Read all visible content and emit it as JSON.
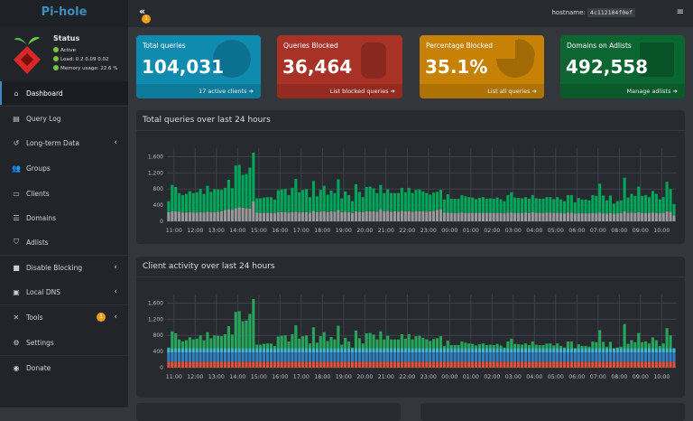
{
  "app": {
    "title": "Pi-hole",
    "hostname_label": "hostname:",
    "hostname": "4c112104f0ef",
    "notification_count": "1"
  },
  "status": {
    "title": "Status",
    "active": "Active",
    "load": "Load:  0.2  0.09  0.02",
    "memory": "Memory usage:  22.6 %",
    "indicator_color": "#7cc242"
  },
  "sidebar": {
    "items": [
      {
        "label": "Dashboard",
        "icon": "home-icon"
      },
      {
        "label": "Query Log",
        "icon": "file-icon"
      },
      {
        "label": "Long-term Data",
        "icon": "history-icon",
        "chevron": true
      },
      {
        "label": "Groups",
        "icon": "users-icon"
      },
      {
        "label": "Clients",
        "icon": "laptop-icon"
      },
      {
        "label": "Domains",
        "icon": "list-icon"
      },
      {
        "label": "Adlists",
        "icon": "shield-icon"
      },
      {
        "label": "Disable Blocking",
        "icon": "stop-icon",
        "chevron": true
      },
      {
        "label": "Local DNS",
        "icon": "address-book-icon",
        "chevron": true
      },
      {
        "label": "Tools",
        "icon": "tools-icon",
        "chevron": true,
        "badge": "1"
      },
      {
        "label": "Settings",
        "icon": "gear-icon"
      },
      {
        "label": "Donate",
        "icon": "donate-icon"
      }
    ]
  },
  "cards": [
    {
      "title": "Total queries",
      "value": "104,031",
      "footer": "17 active clients",
      "color": "#0f8bb0",
      "icon": "globe-icon"
    },
    {
      "title": "Queries Blocked",
      "value": "36,464",
      "footer": "List blocked queries",
      "color": "#a93226",
      "icon": "hand-icon"
    },
    {
      "title": "Percentage Blocked",
      "value": "35.1%",
      "footer": "List all queries",
      "color": "#c78205",
      "icon": "pie-chart-icon"
    },
    {
      "title": "Domains on Adlists",
      "value": "492,558",
      "footer": "Manage adlists",
      "color": "#0b6631",
      "icon": "list-icon"
    }
  ],
  "chart_data": [
    {
      "type": "bar",
      "stacked": true,
      "title": "Total queries over last 24 hours",
      "ylim": [
        0,
        1700
      ],
      "yticks": [
        "0",
        "400",
        "800",
        "1,200",
        "1,600"
      ],
      "ytick_values": [
        0,
        400,
        800,
        1200,
        1600
      ],
      "xticks": [
        "11:00",
        "12:00",
        "13:00",
        "14:00",
        "15:00",
        "16:00",
        "17:00",
        "18:00",
        "19:00",
        "20:00",
        "21:00",
        "22:00",
        "23:00",
        "00:00",
        "01:00",
        "02:00",
        "03:00",
        "04:00",
        "05:00",
        "06:00",
        "07:00",
        "08:00",
        "09:00",
        "10:00"
      ],
      "grid": true,
      "series": [
        {
          "color": "#999999",
          "values": [
            230,
            250,
            250,
            240,
            220,
            220,
            230,
            220,
            220,
            230,
            220,
            240,
            230,
            230,
            240,
            250,
            280,
            300,
            290,
            330,
            350,
            340,
            330,
            320,
            500,
            220,
            210,
            210,
            210,
            210,
            200,
            230,
            230,
            230,
            220,
            230,
            240,
            220,
            230,
            230,
            220,
            260,
            230,
            240,
            250,
            230,
            250,
            240,
            280,
            230,
            240,
            230,
            210,
            250,
            240,
            230,
            250,
            250,
            250,
            240,
            300,
            250,
            260,
            240,
            250,
            240,
            260,
            250,
            250,
            240,
            260,
            250,
            250,
            240,
            250,
            260,
            280,
            300,
            220,
            220,
            210,
            210,
            210,
            220,
            210,
            210,
            210,
            210,
            210,
            210,
            210,
            210,
            210,
            210,
            210,
            200,
            220,
            220,
            210,
            210,
            210,
            220,
            210,
            230,
            210,
            210,
            210,
            220,
            220,
            210,
            210,
            210,
            200,
            220,
            220,
            190,
            200,
            200,
            200,
            200,
            210,
            200,
            220,
            200,
            190,
            210,
            190,
            200,
            200,
            250,
            210,
            220,
            210,
            230,
            210,
            210,
            210,
            220,
            210,
            200,
            210,
            250,
            240,
            150
          ]
        },
        {
          "color": "#00a65a",
          "total_values": [
            500,
            900,
            850,
            700,
            650,
            680,
            750,
            700,
            720,
            800,
            680,
            880,
            730,
            800,
            790,
            780,
            830,
            1030,
            820,
            1380,
            1400,
            1150,
            1170,
            1330,
            1700,
            570,
            570,
            590,
            600,
            600,
            540,
            770,
            790,
            800,
            650,
            830,
            1050,
            720,
            780,
            800,
            600,
            1000,
            620,
            780,
            880,
            660,
            760,
            700,
            1040,
            570,
            740,
            650,
            500,
            920,
            730,
            600,
            850,
            860,
            820,
            700,
            900,
            700,
            790,
            700,
            700,
            700,
            830,
            720,
            830,
            700,
            780,
            790,
            740,
            700,
            660,
            710,
            730,
            780,
            540,
            670,
            560,
            560,
            560,
            650,
            620,
            600,
            590,
            550,
            580,
            600,
            560,
            570,
            560,
            590,
            550,
            500,
            650,
            720,
            590,
            580,
            570,
            600,
            560,
            650,
            570,
            560,
            560,
            600,
            600,
            550,
            600,
            540,
            500,
            650,
            650,
            470,
            580,
            540,
            540,
            520,
            650,
            630,
            930,
            640,
            520,
            640,
            440,
            500,
            520,
            1080,
            590,
            680,
            630,
            860,
            630,
            650,
            600,
            750,
            680,
            540,
            600,
            980,
            800,
            430
          ]
        }
      ]
    },
    {
      "type": "bar",
      "stacked": true,
      "title": "Client activity over last 24 hours",
      "ylim": [
        0,
        1700
      ],
      "yticks": [
        "0",
        "400",
        "800",
        "1,200",
        "1,600"
      ],
      "ytick_values": [
        0,
        400,
        800,
        1200,
        1600
      ],
      "xticks": [
        "11:00",
        "12:00",
        "13:00",
        "14:00",
        "15:00",
        "16:00",
        "17:00",
        "18:00",
        "19:00",
        "20:00",
        "21:00",
        "22:00",
        "23:00",
        "00:00",
        "01:00",
        "02:00",
        "03:00",
        "04:00",
        "05:00",
        "06:00",
        "07:00",
        "08:00",
        "09:00",
        "10:00"
      ],
      "grid": true,
      "series": [
        {
          "color": "#e0533a",
          "constant": 150
        },
        {
          "color": "#2f7fc1",
          "constant": 230
        },
        {
          "color": "#3fb8c8",
          "constant": 100
        },
        {
          "color": "#27a55a",
          "values": [
            20,
            420,
            370,
            220,
            170,
            200,
            270,
            220,
            240,
            320,
            200,
            400,
            250,
            320,
            310,
            300,
            350,
            550,
            340,
            900,
            920,
            670,
            690,
            850,
            1220,
            90,
            90,
            110,
            120,
            120,
            60,
            290,
            310,
            320,
            170,
            350,
            570,
            240,
            300,
            320,
            120,
            520,
            140,
            300,
            400,
            180,
            280,
            220,
            560,
            90,
            260,
            170,
            20,
            440,
            250,
            120,
            370,
            380,
            340,
            220,
            420,
            220,
            310,
            220,
            220,
            220,
            350,
            240,
            350,
            220,
            300,
            310,
            260,
            220,
            180,
            230,
            250,
            300,
            60,
            190,
            80,
            80,
            80,
            170,
            140,
            120,
            110,
            70,
            100,
            120,
            80,
            90,
            80,
            110,
            70,
            20,
            170,
            240,
            110,
            100,
            90,
            120,
            80,
            170,
            90,
            80,
            80,
            120,
            120,
            70,
            120,
            60,
            20,
            170,
            170,
            0,
            100,
            60,
            60,
            40,
            170,
            150,
            450,
            160,
            40,
            160,
            0,
            20,
            40,
            600,
            110,
            200,
            150,
            380,
            150,
            170,
            120,
            270,
            200,
            60,
            120,
            500,
            320,
            0
          ]
        }
      ]
    }
  ]
}
